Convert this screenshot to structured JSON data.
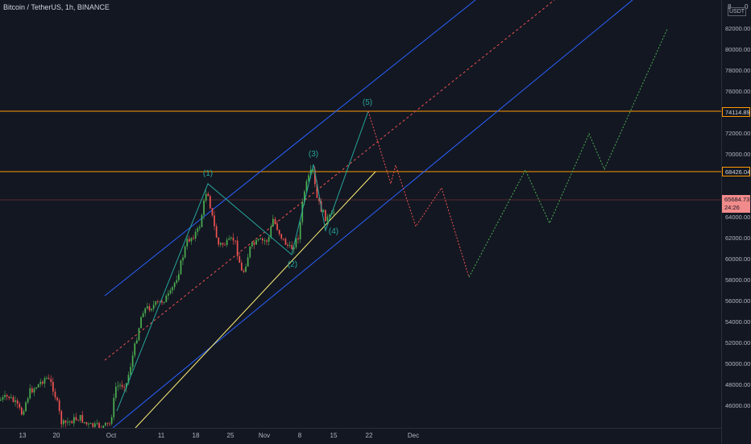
{
  "header": {
    "symbol": "Bitcoin / TetherUS, 1h, BINANCE",
    "axis_currency": "USDT",
    "axis_top_left": "8",
    "axis_top_right": "0"
  },
  "price_axis": {
    "labels": [
      "82000.00",
      "80000.00",
      "78000.00",
      "76000.00",
      "72000.00",
      "70000.00",
      "64000.00",
      "62000.00",
      "60000.00",
      "58000.00",
      "56000.00",
      "54000.00",
      "52000.00",
      "50000.00",
      "48000.00",
      "46000.00"
    ],
    "tags": {
      "level_high": {
        "value": "74114.89",
        "color": "#ff9800"
      },
      "level_mid": {
        "value": "68426.04",
        "color": "#ff9800"
      },
      "last_price": {
        "value": "65684.73",
        "countdown": "24:26",
        "color": "#ef5350"
      }
    }
  },
  "time_axis": {
    "labels": [
      "13",
      "20",
      "Oct",
      "11",
      "18",
      "25",
      "Nov",
      "8",
      "15",
      "22",
      "Dec"
    ]
  },
  "waves": {
    "w1": "(1)",
    "w2": "(2)",
    "w3": "(3)",
    "w4": "(4)",
    "w5": "(5)"
  },
  "colors": {
    "background": "#131722",
    "bull": "#4caf50",
    "bear": "#ef5350",
    "channel": "#2962ff",
    "horizontal": "#ff9800",
    "trendline": "#fff176",
    "elliott": "#26a69a"
  }
}
